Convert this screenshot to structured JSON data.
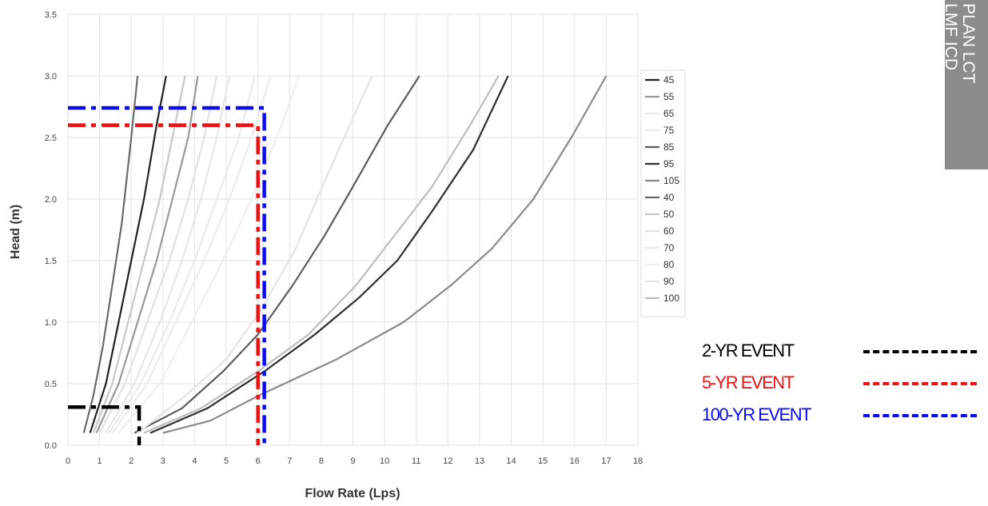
{
  "chart_data": {
    "type": "line",
    "title": "",
    "xlabel": "Flow Rate (Lps)",
    "ylabel": "Head (m)",
    "xlim": [
      0,
      18
    ],
    "ylim": [
      0,
      3.5
    ],
    "x_ticks": [
      "0",
      "1",
      "2",
      "3",
      "4",
      "5",
      "6",
      "7",
      "8",
      "9",
      "10",
      "11",
      "12",
      "13",
      "14",
      "15",
      "16",
      "17",
      "18"
    ],
    "y_ticks": [
      "0.0",
      "0.5",
      "1.0",
      "1.5",
      "2.0",
      "2.5",
      "3.0",
      "3.5"
    ],
    "grid": true,
    "legend_position": "right",
    "series": [
      {
        "name": "45",
        "color": "#222222",
        "points": [
          [
            0.7,
            0.1
          ],
          [
            1.2,
            0.5
          ],
          [
            1.6,
            1.0
          ],
          [
            2.0,
            1.5
          ],
          [
            2.4,
            2.0
          ],
          [
            2.8,
            2.6
          ],
          [
            3.1,
            3.0
          ]
        ]
      },
      {
        "name": "55",
        "color": "#999999",
        "points": [
          [
            0.9,
            0.1
          ],
          [
            1.6,
            0.5
          ],
          [
            2.2,
            1.0
          ],
          [
            2.8,
            1.5
          ],
          [
            3.3,
            2.0
          ],
          [
            3.8,
            2.5
          ],
          [
            4.1,
            3.0
          ]
        ]
      },
      {
        "name": "65",
        "color": "#e6e6e6",
        "points": [
          [
            1.2,
            0.1
          ],
          [
            2.1,
            0.5
          ],
          [
            2.9,
            1.0
          ],
          [
            3.6,
            1.5
          ],
          [
            4.2,
            2.0
          ],
          [
            4.7,
            2.5
          ],
          [
            5.1,
            3.0
          ]
        ]
      },
      {
        "name": "75",
        "color": "#ececec",
        "points": [
          [
            1.4,
            0.1
          ],
          [
            2.5,
            0.5
          ],
          [
            3.4,
            1.0
          ],
          [
            4.3,
            1.5
          ],
          [
            5.1,
            2.0
          ],
          [
            5.8,
            2.5
          ],
          [
            6.4,
            3.0
          ]
        ]
      },
      {
        "name": "85",
        "color": "#5c5c5c",
        "points": [
          [
            2.1,
            0.1
          ],
          [
            3.6,
            0.3
          ],
          [
            4.9,
            0.6
          ],
          [
            6.0,
            0.9
          ],
          [
            7.1,
            1.3
          ],
          [
            8.1,
            1.7
          ],
          [
            9.0,
            2.1
          ],
          [
            10.1,
            2.6
          ],
          [
            11.1,
            3.0
          ]
        ]
      },
      {
        "name": "95",
        "color": "#2e2e2e",
        "points": [
          [
            2.6,
            0.1
          ],
          [
            4.4,
            0.3
          ],
          [
            6.2,
            0.6
          ],
          [
            7.8,
            0.9
          ],
          [
            9.2,
            1.2
          ],
          [
            10.4,
            1.5
          ],
          [
            11.5,
            1.9
          ],
          [
            12.8,
            2.4
          ],
          [
            13.9,
            3.0
          ]
        ]
      },
      {
        "name": "105",
        "color": "#8a8a8a",
        "points": [
          [
            3.0,
            0.1
          ],
          [
            4.5,
            0.2
          ],
          [
            6.0,
            0.4
          ],
          [
            8.5,
            0.7
          ],
          [
            10.6,
            1.0
          ],
          [
            12.1,
            1.3
          ],
          [
            13.4,
            1.6
          ],
          [
            14.7,
            2.0
          ],
          [
            15.9,
            2.5
          ],
          [
            17.0,
            3.0
          ]
        ]
      },
      {
        "name": "40",
        "color": "#6a6a6a",
        "points": [
          [
            0.5,
            0.1
          ],
          [
            0.8,
            0.4
          ],
          [
            1.1,
            0.8
          ],
          [
            1.4,
            1.3
          ],
          [
            1.7,
            1.8
          ],
          [
            2.0,
            2.5
          ],
          [
            2.2,
            3.0
          ]
        ]
      },
      {
        "name": "50",
        "color": "#c8c8c8",
        "points": [
          [
            0.8,
            0.1
          ],
          [
            1.4,
            0.5
          ],
          [
            1.9,
            1.0
          ],
          [
            2.4,
            1.5
          ],
          [
            2.9,
            2.0
          ],
          [
            3.3,
            2.5
          ],
          [
            3.7,
            3.0
          ]
        ]
      },
      {
        "name": "60",
        "color": "#e2e2e2",
        "points": [
          [
            1.0,
            0.1
          ],
          [
            1.8,
            0.5
          ],
          [
            2.5,
            1.0
          ],
          [
            3.2,
            1.5
          ],
          [
            3.8,
            2.0
          ],
          [
            4.3,
            2.5
          ],
          [
            4.7,
            3.0
          ]
        ]
      },
      {
        "name": "70",
        "color": "#ebebeb",
        "points": [
          [
            1.3,
            0.1
          ],
          [
            2.3,
            0.5
          ],
          [
            3.2,
            1.0
          ],
          [
            4.0,
            1.5
          ],
          [
            4.7,
            2.0
          ],
          [
            5.4,
            2.5
          ],
          [
            5.9,
            3.0
          ]
        ]
      },
      {
        "name": "80",
        "color": "#efefef",
        "points": [
          [
            1.6,
            0.1
          ],
          [
            2.9,
            0.5
          ],
          [
            3.9,
            1.0
          ],
          [
            4.9,
            1.5
          ],
          [
            5.8,
            2.0
          ],
          [
            6.6,
            2.5
          ],
          [
            7.3,
            3.0
          ]
        ]
      },
      {
        "name": "90",
        "color": "#e4e4e4",
        "points": [
          [
            2.2,
            0.1
          ],
          [
            3.7,
            0.4
          ],
          [
            5.0,
            0.7
          ],
          [
            6.1,
            1.1
          ],
          [
            7.2,
            1.6
          ],
          [
            8.2,
            2.2
          ],
          [
            8.9,
            2.6
          ],
          [
            9.6,
            3.0
          ]
        ]
      },
      {
        "name": "100",
        "color": "#bdbdbd",
        "points": [
          [
            2.4,
            0.1
          ],
          [
            4.2,
            0.3
          ],
          [
            6.0,
            0.6
          ],
          [
            7.6,
            0.9
          ],
          [
            9.1,
            1.3
          ],
          [
            10.3,
            1.7
          ],
          [
            11.5,
            2.1
          ],
          [
            12.7,
            2.6
          ],
          [
            13.6,
            3.0
          ]
        ]
      }
    ],
    "reference_lines": [
      {
        "event": "2-YR",
        "color": "#000000",
        "points": [
          [
            0,
            0.31
          ],
          [
            2.25,
            0.31
          ],
          [
            2.25,
            0.0
          ]
        ]
      },
      {
        "event": "5-YR",
        "color": "#ee1111",
        "points": [
          [
            0,
            2.6
          ],
          [
            6.0,
            2.6
          ],
          [
            6.0,
            0.0
          ]
        ]
      },
      {
        "event": "100-YR",
        "color": "#0a0af0",
        "points": [
          [
            0,
            2.74
          ],
          [
            6.2,
            2.74
          ],
          [
            6.2,
            0.0
          ]
        ]
      }
    ]
  },
  "event_legend": [
    {
      "label": "2-YR EVENT",
      "color": "#000000"
    },
    {
      "label": "5-YR EVENT",
      "color": "#ee1111"
    },
    {
      "label": "100-YR EVENT",
      "color": "#0a0af0"
    }
  ],
  "side_tab": {
    "line1": "PLAN LCT",
    "line2": "LMF ICD",
    "color": "#8c8c8c"
  }
}
